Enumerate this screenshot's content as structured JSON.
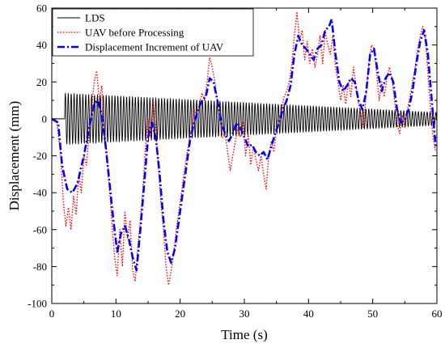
{
  "chart_data": {
    "type": "line",
    "title": "",
    "xlabel": "Time (s)",
    "ylabel": "Displacement (mm)",
    "xlim": [
      0,
      60
    ],
    "ylim": [
      -100,
      60
    ],
    "x_ticks": [
      "0",
      "10",
      "20",
      "30",
      "40",
      "50",
      "60"
    ],
    "y_ticks": [
      "60",
      "40",
      "20",
      "0",
      "-20",
      "-40",
      "-60",
      "-80",
      "-100"
    ],
    "grid": false,
    "legend_position": "top-left",
    "series": [
      {
        "name": "LDS",
        "style": "solid",
        "color": "#000000",
        "oscillation": {
          "start": 2.0,
          "end": 60,
          "frequency_hz": 2.2,
          "amplitude_start": 14,
          "amplitude_end": 3.5
        },
        "points": [
          [
            0,
            0
          ],
          [
            2.0,
            0
          ]
        ]
      },
      {
        "name": "UAV before Processing",
        "style": "dotted",
        "color": "#ff0000",
        "points": [
          [
            0,
            0
          ],
          [
            0.8,
            -2
          ],
          [
            1.4,
            -20
          ],
          [
            1.8,
            -45
          ],
          [
            2.2,
            -58
          ],
          [
            2.6,
            -48
          ],
          [
            3.0,
            -60
          ],
          [
            3.4,
            -42
          ],
          [
            3.8,
            -52
          ],
          [
            4.2,
            -30
          ],
          [
            4.6,
            -40
          ],
          [
            5.0,
            -20
          ],
          [
            5.4,
            -25
          ],
          [
            5.8,
            -8
          ],
          [
            6.2,
            5
          ],
          [
            6.6,
            20
          ],
          [
            7.0,
            26
          ],
          [
            7.4,
            10
          ],
          [
            7.8,
            18
          ],
          [
            8.2,
            -5
          ],
          [
            8.6,
            -20
          ],
          [
            9.0,
            -38
          ],
          [
            9.4,
            -58
          ],
          [
            9.8,
            -75
          ],
          [
            10.2,
            -85
          ],
          [
            10.6,
            -60
          ],
          [
            11.0,
            -80
          ],
          [
            11.4,
            -50
          ],
          [
            11.8,
            -65
          ],
          [
            12.2,
            -55
          ],
          [
            12.6,
            -82
          ],
          [
            13.0,
            -88
          ],
          [
            13.4,
            -70
          ],
          [
            13.8,
            -55
          ],
          [
            14.2,
            -38
          ],
          [
            14.6,
            -15
          ],
          [
            15.0,
            0
          ],
          [
            15.4,
            -10
          ],
          [
            15.8,
            10
          ],
          [
            16.2,
            -5
          ],
          [
            16.6,
            -25
          ],
          [
            17.0,
            -45
          ],
          [
            17.4,
            -60
          ],
          [
            17.8,
            -80
          ],
          [
            18.2,
            -90
          ],
          [
            18.6,
            -82
          ],
          [
            19.0,
            -72
          ],
          [
            19.4,
            -60
          ],
          [
            19.8,
            -50
          ],
          [
            20.2,
            -40
          ],
          [
            20.6,
            -30
          ],
          [
            21.0,
            -20
          ],
          [
            21.4,
            -12
          ],
          [
            21.8,
            -5
          ],
          [
            22.2,
            5
          ],
          [
            22.6,
            2
          ],
          [
            23.0,
            8
          ],
          [
            23.4,
            14
          ],
          [
            23.8,
            10
          ],
          [
            24.2,
            20
          ],
          [
            24.6,
            33
          ],
          [
            25.0,
            28
          ],
          [
            25.4,
            20
          ],
          [
            25.8,
            10
          ],
          [
            26.2,
            0
          ],
          [
            26.6,
            -10
          ],
          [
            27.0,
            -8
          ],
          [
            27.4,
            -18
          ],
          [
            27.8,
            -28
          ],
          [
            28.2,
            -20
          ],
          [
            28.6,
            -12
          ],
          [
            29.0,
            -5
          ],
          [
            29.4,
            -10
          ],
          [
            29.8,
            -2
          ],
          [
            30.2,
            -20
          ],
          [
            30.6,
            -8
          ],
          [
            31.0,
            -25
          ],
          [
            31.4,
            -15
          ],
          [
            31.8,
            -22
          ],
          [
            32.2,
            -28
          ],
          [
            32.6,
            -20
          ],
          [
            33.0,
            -30
          ],
          [
            33.4,
            -38
          ],
          [
            33.8,
            -20
          ],
          [
            34.2,
            -12
          ],
          [
            34.6,
            -18
          ],
          [
            35.0,
            -5
          ],
          [
            35.4,
            0
          ],
          [
            35.8,
            5
          ],
          [
            36.2,
            12
          ],
          [
            36.6,
            15
          ],
          [
            37.0,
            20
          ],
          [
            37.4,
            30
          ],
          [
            37.8,
            45
          ],
          [
            38.2,
            58
          ],
          [
            38.6,
            42
          ],
          [
            39.0,
            48
          ],
          [
            39.4,
            32
          ],
          [
            39.8,
            42
          ],
          [
            40.2,
            30
          ],
          [
            40.6,
            38
          ],
          [
            41.0,
            28
          ],
          [
            41.4,
            35
          ],
          [
            41.8,
            45
          ],
          [
            42.2,
            30
          ],
          [
            42.6,
            48
          ],
          [
            43.0,
            40
          ],
          [
            43.4,
            35
          ],
          [
            43.8,
            45
          ],
          [
            44.2,
            28
          ],
          [
            44.6,
            20
          ],
          [
            45.0,
            10
          ],
          [
            45.4,
            18
          ],
          [
            45.8,
            8
          ],
          [
            46.2,
            20
          ],
          [
            46.6,
            12
          ],
          [
            47.0,
            28
          ],
          [
            47.4,
            18
          ],
          [
            47.8,
            8
          ],
          [
            48.2,
            2
          ],
          [
            48.6,
            -5
          ],
          [
            49.0,
            15
          ],
          [
            49.4,
            30
          ],
          [
            49.8,
            40
          ],
          [
            50.2,
            38
          ],
          [
            50.6,
            25
          ],
          [
            51.0,
            10
          ],
          [
            51.4,
            20
          ],
          [
            51.8,
            12
          ],
          [
            52.2,
            22
          ],
          [
            52.6,
            28
          ],
          [
            53.0,
            22
          ],
          [
            53.4,
            10
          ],
          [
            53.8,
            -3
          ],
          [
            54.2,
            -8
          ],
          [
            54.6,
            2
          ],
          [
            55.0,
            -5
          ],
          [
            55.4,
            5
          ],
          [
            55.8,
            12
          ],
          [
            56.2,
            20
          ],
          [
            56.6,
            28
          ],
          [
            57.0,
            38
          ],
          [
            57.4,
            45
          ],
          [
            57.8,
            50
          ],
          [
            58.2,
            44
          ],
          [
            58.6,
            25
          ],
          [
            59.0,
            5
          ],
          [
            59.4,
            -10
          ],
          [
            59.8,
            -18
          ]
        ]
      },
      {
        "name": "Displacement Increment of UAV",
        "style": "dashdot",
        "color": "#0000ff",
        "points": [
          [
            0,
            0
          ],
          [
            1.0,
            -2
          ],
          [
            1.6,
            -25
          ],
          [
            2.4,
            -38
          ],
          [
            3.2,
            -40
          ],
          [
            4.0,
            -35
          ],
          [
            5.0,
            -20
          ],
          [
            5.8,
            -5
          ],
          [
            6.6,
            8
          ],
          [
            7.2,
            10
          ],
          [
            7.8,
            2
          ],
          [
            8.4,
            -15
          ],
          [
            9.0,
            -35
          ],
          [
            9.6,
            -55
          ],
          [
            10.2,
            -72
          ],
          [
            10.8,
            -62
          ],
          [
            11.4,
            -58
          ],
          [
            12.0,
            -65
          ],
          [
            12.6,
            -75
          ],
          [
            13.2,
            -82
          ],
          [
            13.8,
            -60
          ],
          [
            14.4,
            -35
          ],
          [
            15.0,
            -10
          ],
          [
            15.6,
            -2
          ],
          [
            16.2,
            -10
          ],
          [
            16.8,
            -30
          ],
          [
            17.4,
            -55
          ],
          [
            18.0,
            -72
          ],
          [
            18.6,
            -78
          ],
          [
            19.2,
            -70
          ],
          [
            19.8,
            -55
          ],
          [
            20.4,
            -40
          ],
          [
            21.0,
            -25
          ],
          [
            21.6,
            -10
          ],
          [
            22.2,
            -2
          ],
          [
            22.8,
            5
          ],
          [
            23.4,
            10
          ],
          [
            24.0,
            12
          ],
          [
            24.6,
            22
          ],
          [
            25.2,
            20
          ],
          [
            25.8,
            10
          ],
          [
            26.4,
            -2
          ],
          [
            27.0,
            -8
          ],
          [
            27.6,
            -12
          ],
          [
            28.2,
            -8
          ],
          [
            28.8,
            -2
          ],
          [
            29.4,
            -5
          ],
          [
            30.0,
            -10
          ],
          [
            30.6,
            -15
          ],
          [
            31.2,
            -14
          ],
          [
            31.8,
            -18
          ],
          [
            32.4,
            -20
          ],
          [
            33.0,
            -18
          ],
          [
            33.6,
            -22
          ],
          [
            34.2,
            -15
          ],
          [
            34.8,
            -8
          ],
          [
            35.4,
            -2
          ],
          [
            36.0,
            5
          ],
          [
            36.6,
            10
          ],
          [
            37.2,
            18
          ],
          [
            37.8,
            35
          ],
          [
            38.4,
            45
          ],
          [
            39.0,
            40
          ],
          [
            39.6,
            38
          ],
          [
            40.2,
            35
          ],
          [
            40.8,
            32
          ],
          [
            41.4,
            38
          ],
          [
            42.0,
            40
          ],
          [
            42.6,
            48
          ],
          [
            43.2,
            50
          ],
          [
            43.6,
            54
          ],
          [
            44.2,
            35
          ],
          [
            44.8,
            20
          ],
          [
            45.4,
            15
          ],
          [
            46.0,
            18
          ],
          [
            46.6,
            22
          ],
          [
            47.2,
            20
          ],
          [
            47.8,
            10
          ],
          [
            48.4,
            5
          ],
          [
            49.0,
            15
          ],
          [
            49.6,
            35
          ],
          [
            50.2,
            38
          ],
          [
            50.8,
            25
          ],
          [
            51.4,
            15
          ],
          [
            52.0,
            22
          ],
          [
            52.6,
            25
          ],
          [
            53.2,
            20
          ],
          [
            53.8,
            5
          ],
          [
            54.4,
            -2
          ],
          [
            55.0,
            0
          ],
          [
            55.6,
            5
          ],
          [
            56.2,
            15
          ],
          [
            56.8,
            30
          ],
          [
            57.4,
            42
          ],
          [
            58.0,
            48
          ],
          [
            58.6,
            35
          ],
          [
            59.2,
            10
          ],
          [
            59.8,
            -15
          ]
        ]
      }
    ]
  }
}
